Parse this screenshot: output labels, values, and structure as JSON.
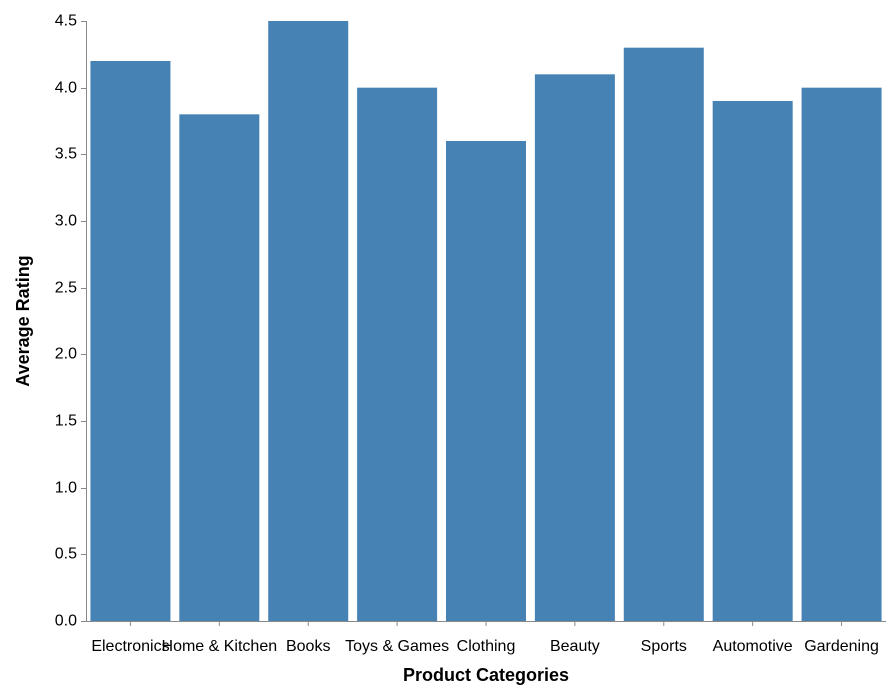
{
  "chart_data": {
    "type": "bar",
    "categories": [
      "Electronics",
      "Home & Kitchen",
      "Books",
      "Toys & Games",
      "Clothing",
      "Beauty",
      "Sports",
      "Automotive",
      "Gardening"
    ],
    "values": [
      4.2,
      3.8,
      4.5,
      4.0,
      3.6,
      4.1,
      4.3,
      3.9,
      4.0
    ],
    "title": "",
    "xlabel": "Product Categories",
    "ylabel": "Average Rating",
    "ylim": [
      0,
      4.5
    ],
    "yticks": [
      "0.0",
      "0.5",
      "1.0",
      "1.5",
      "2.0",
      "2.5",
      "3.0",
      "3.5",
      "4.0",
      "4.5"
    ],
    "grid": false,
    "bar_color": "#4682b4"
  }
}
